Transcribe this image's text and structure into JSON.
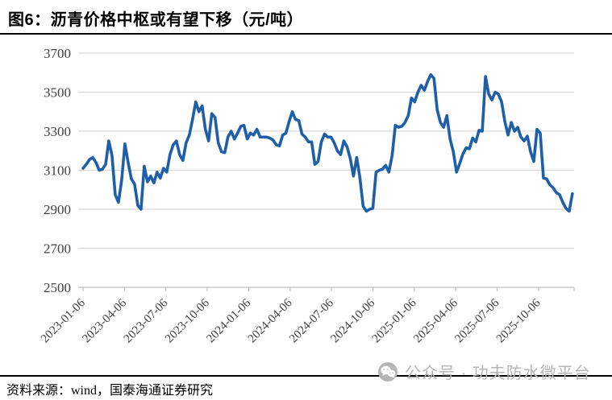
{
  "header": {
    "title": "图6：沥青价格中枢或有望下移（元/吨）"
  },
  "footer": {
    "source_label": "资料来源：wind，国泰海通证券研究"
  },
  "watermark": {
    "icon": "wechat-icon",
    "text": "公众号 · 功夫防水微平台",
    "color": "#b5b5b5"
  },
  "colors": {
    "line": "#1f5fa8",
    "grid": "#d9d9d9",
    "axis": "#c0c0c0",
    "tick_label": "#404040",
    "rule": "#000000"
  },
  "chart_data": {
    "type": "line",
    "title": "沥青价格中枢或有望下移（元/吨）",
    "xlabel": "",
    "ylabel": "",
    "ylim": [
      2500,
      3700
    ],
    "y_ticks": [
      3700,
      3500,
      3300,
      3100,
      2900,
      2700,
      2500
    ],
    "x_tick_labels": [
      "2023-01-06",
      "2023-04-06",
      "2023-07-06",
      "2023-10-06",
      "2024-01-06",
      "2024-04-06",
      "2024-07-06",
      "2024-10-06",
      "2025-01-06",
      "2025-04-06",
      "2025-07-06",
      "2025-10-06"
    ],
    "grid": "horizontal",
    "legend": "none",
    "series": [
      {
        "name": "沥青价格(元/吨)",
        "x_start": "2023-01-06",
        "x_interval_days": 7,
        "values": [
          3110,
          3130,
          3155,
          3165,
          3140,
          3100,
          3105,
          3130,
          3250,
          3175,
          2975,
          2935,
          3050,
          3235,
          3140,
          3055,
          3030,
          2920,
          2900,
          3120,
          3040,
          3070,
          3035,
          3090,
          3060,
          3110,
          3090,
          3180,
          3230,
          3250,
          3180,
          3150,
          3240,
          3280,
          3360,
          3450,
          3400,
          3430,
          3310,
          3250,
          3390,
          3370,
          3240,
          3195,
          3190,
          3270,
          3300,
          3260,
          3290,
          3325,
          3330,
          3260,
          3290,
          3280,
          3310,
          3270,
          3270,
          3270,
          3265,
          3255,
          3230,
          3225,
          3280,
          3290,
          3350,
          3400,
          3360,
          3355,
          3285,
          3270,
          3245,
          3245,
          3130,
          3145,
          3245,
          3285,
          3270,
          3270,
          3240,
          3200,
          3180,
          3250,
          3220,
          3160,
          3070,
          3165,
          3060,
          2915,
          2890,
          2900,
          2905,
          3090,
          3100,
          3105,
          3125,
          3090,
          3175,
          3330,
          3320,
          3325,
          3345,
          3380,
          3470,
          3450,
          3500,
          3535,
          3510,
          3555,
          3590,
          3570,
          3410,
          3345,
          3320,
          3380,
          3260,
          3195,
          3090,
          3135,
          3185,
          3215,
          3210,
          3265,
          3245,
          3305,
          3300,
          3580,
          3490,
          3460,
          3500,
          3490,
          3450,
          3350,
          3280,
          3345,
          3300,
          3320,
          3270,
          3250,
          3275,
          3195,
          3145,
          3310,
          3290,
          3060,
          3055,
          3025,
          3010,
          2985,
          2975,
          2935,
          2905,
          2890,
          2980
        ]
      }
    ]
  }
}
